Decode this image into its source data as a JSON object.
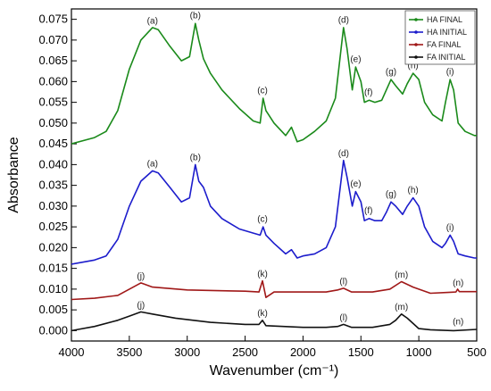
{
  "chart_data": {
    "type": "line",
    "xlabel": "Wavenumber (cm⁻¹)",
    "ylabel": "Absorbance",
    "xlim": [
      4000,
      500
    ],
    "ylim": [
      -0.0025,
      0.0775
    ],
    "x_ticks": [
      "4000",
      "3500",
      "3000",
      "2500",
      "2000",
      "1500",
      "1000",
      "500"
    ],
    "y_ticks": [
      "0.000",
      "0.005",
      "0.010",
      "0.015",
      "0.020",
      "0.025",
      "0.030",
      "0.035",
      "0.040",
      "0.045",
      "0.050",
      "0.055",
      "0.060",
      "0.065",
      "0.070",
      "0.075"
    ],
    "legend": {
      "placement": "top-right",
      "entries": [
        "HA FINAL",
        "HA INITIAL",
        "FA FINAL",
        "FA INITIAL"
      ]
    },
    "series": [
      {
        "name": "HA FINAL",
        "color": "#1a8a1a",
        "points": [
          [
            4000,
            0.045
          ],
          [
            3800,
            0.0465
          ],
          [
            3700,
            0.048
          ],
          [
            3600,
            0.053
          ],
          [
            3500,
            0.063
          ],
          [
            3400,
            0.07
          ],
          [
            3300,
            0.073
          ],
          [
            3250,
            0.0725
          ],
          [
            3150,
            0.0685
          ],
          [
            3050,
            0.065
          ],
          [
            2980,
            0.066
          ],
          [
            2930,
            0.074
          ],
          [
            2900,
            0.07
          ],
          [
            2860,
            0.0655
          ],
          [
            2800,
            0.062
          ],
          [
            2700,
            0.058
          ],
          [
            2550,
            0.0535
          ],
          [
            2430,
            0.0505
          ],
          [
            2370,
            0.05
          ],
          [
            2345,
            0.056
          ],
          [
            2320,
            0.053
          ],
          [
            2250,
            0.05
          ],
          [
            2150,
            0.047
          ],
          [
            2100,
            0.049
          ],
          [
            2050,
            0.0455
          ],
          [
            2000,
            0.046
          ],
          [
            1900,
            0.048
          ],
          [
            1800,
            0.0505
          ],
          [
            1720,
            0.056
          ],
          [
            1650,
            0.073
          ],
          [
            1620,
            0.068
          ],
          [
            1575,
            0.058
          ],
          [
            1545,
            0.0635
          ],
          [
            1500,
            0.06
          ],
          [
            1470,
            0.055
          ],
          [
            1430,
            0.0555
          ],
          [
            1380,
            0.055
          ],
          [
            1320,
            0.0555
          ],
          [
            1280,
            0.058
          ],
          [
            1240,
            0.0605
          ],
          [
            1200,
            0.059
          ],
          [
            1140,
            0.057
          ],
          [
            1100,
            0.0595
          ],
          [
            1050,
            0.062
          ],
          [
            1000,
            0.0605
          ],
          [
            950,
            0.055
          ],
          [
            880,
            0.052
          ],
          [
            800,
            0.0505
          ],
          [
            770,
            0.055
          ],
          [
            730,
            0.0605
          ],
          [
            700,
            0.058
          ],
          [
            660,
            0.05
          ],
          [
            600,
            0.048
          ],
          [
            520,
            0.047
          ],
          [
            500,
            0.047
          ]
        ]
      },
      {
        "name": "HA INITIAL",
        "color": "#1c1ccc",
        "points": [
          [
            4000,
            0.016
          ],
          [
            3800,
            0.017
          ],
          [
            3700,
            0.018
          ],
          [
            3600,
            0.022
          ],
          [
            3500,
            0.03
          ],
          [
            3400,
            0.036
          ],
          [
            3300,
            0.0385
          ],
          [
            3250,
            0.038
          ],
          [
            3150,
            0.0345
          ],
          [
            3050,
            0.031
          ],
          [
            2980,
            0.032
          ],
          [
            2930,
            0.04
          ],
          [
            2900,
            0.036
          ],
          [
            2860,
            0.0345
          ],
          [
            2800,
            0.03
          ],
          [
            2700,
            0.027
          ],
          [
            2550,
            0.0245
          ],
          [
            2430,
            0.0235
          ],
          [
            2370,
            0.023
          ],
          [
            2345,
            0.025
          ],
          [
            2320,
            0.023
          ],
          [
            2250,
            0.021
          ],
          [
            2150,
            0.0185
          ],
          [
            2100,
            0.0195
          ],
          [
            2050,
            0.0175
          ],
          [
            2000,
            0.018
          ],
          [
            1900,
            0.0185
          ],
          [
            1800,
            0.02
          ],
          [
            1720,
            0.025
          ],
          [
            1650,
            0.041
          ],
          [
            1620,
            0.037
          ],
          [
            1575,
            0.03
          ],
          [
            1545,
            0.0335
          ],
          [
            1500,
            0.031
          ],
          [
            1470,
            0.0265
          ],
          [
            1430,
            0.027
          ],
          [
            1380,
            0.0265
          ],
          [
            1320,
            0.0265
          ],
          [
            1280,
            0.0285
          ],
          [
            1240,
            0.031
          ],
          [
            1200,
            0.03
          ],
          [
            1140,
            0.028
          ],
          [
            1100,
            0.03
          ],
          [
            1050,
            0.032
          ],
          [
            1000,
            0.03
          ],
          [
            950,
            0.025
          ],
          [
            880,
            0.0215
          ],
          [
            800,
            0.02
          ],
          [
            770,
            0.021
          ],
          [
            730,
            0.023
          ],
          [
            700,
            0.0215
          ],
          [
            660,
            0.0185
          ],
          [
            600,
            0.018
          ],
          [
            520,
            0.0175
          ],
          [
            500,
            0.0175
          ]
        ]
      },
      {
        "name": "FA FINAL",
        "color": "#a01818",
        "points": [
          [
            4000,
            0.0075
          ],
          [
            3800,
            0.0078
          ],
          [
            3600,
            0.0085
          ],
          [
            3500,
            0.01
          ],
          [
            3400,
            0.0115
          ],
          [
            3300,
            0.0105
          ],
          [
            3000,
            0.0098
          ],
          [
            2700,
            0.0096
          ],
          [
            2500,
            0.0095
          ],
          [
            2380,
            0.0093
          ],
          [
            2350,
            0.012
          ],
          [
            2320,
            0.008
          ],
          [
            2250,
            0.0093
          ],
          [
            2000,
            0.0093
          ],
          [
            1800,
            0.0093
          ],
          [
            1700,
            0.0098
          ],
          [
            1650,
            0.0102
          ],
          [
            1580,
            0.0093
          ],
          [
            1400,
            0.0093
          ],
          [
            1250,
            0.01
          ],
          [
            1150,
            0.0118
          ],
          [
            1050,
            0.0105
          ],
          [
            900,
            0.009
          ],
          [
            750,
            0.0092
          ],
          [
            680,
            0.0093
          ],
          [
            665,
            0.01
          ],
          [
            650,
            0.0094
          ],
          [
            500,
            0.0094
          ]
        ]
      },
      {
        "name": "FA INITIAL",
        "color": "#111111",
        "points": [
          [
            4000,
            0.0
          ],
          [
            3800,
            0.001
          ],
          [
            3600,
            0.0025
          ],
          [
            3500,
            0.0035
          ],
          [
            3400,
            0.0045
          ],
          [
            3300,
            0.004
          ],
          [
            3100,
            0.003
          ],
          [
            2800,
            0.002
          ],
          [
            2500,
            0.0015
          ],
          [
            2380,
            0.0015
          ],
          [
            2350,
            0.0025
          ],
          [
            2320,
            0.0012
          ],
          [
            2000,
            0.0008
          ],
          [
            1800,
            0.0008
          ],
          [
            1700,
            0.001
          ],
          [
            1650,
            0.0015
          ],
          [
            1580,
            0.0008
          ],
          [
            1400,
            0.0008
          ],
          [
            1250,
            0.0015
          ],
          [
            1200,
            0.0025
          ],
          [
            1150,
            0.004
          ],
          [
            1100,
            0.003
          ],
          [
            1000,
            0.0005
          ],
          [
            900,
            0.0002
          ],
          [
            700,
            0.0
          ],
          [
            500,
            0.0003
          ]
        ]
      }
    ],
    "annotations": [
      {
        "text": "(a)",
        "x": 3300,
        "y": 0.074
      },
      {
        "text": "(b)",
        "x": 2930,
        "y": 0.0752
      },
      {
        "text": "(c)",
        "x": 2350,
        "y": 0.0572
      },
      {
        "text": "(d)",
        "x": 1650,
        "y": 0.0742
      },
      {
        "text": "(e)",
        "x": 1545,
        "y": 0.0647
      },
      {
        "text": "(f)",
        "x": 1435,
        "y": 0.0567
      },
      {
        "text": "(g)",
        "x": 1240,
        "y": 0.0617
      },
      {
        "text": "(h)",
        "x": 1050,
        "y": 0.0632
      },
      {
        "text": "(i)",
        "x": 730,
        "y": 0.0617
      },
      {
        "text": "(a)",
        "x": 3300,
        "y": 0.0395
      },
      {
        "text": "(b)",
        "x": 2930,
        "y": 0.041
      },
      {
        "text": "(c)",
        "x": 2350,
        "y": 0.0262
      },
      {
        "text": "(d)",
        "x": 1650,
        "y": 0.042
      },
      {
        "text": "(e)",
        "x": 1545,
        "y": 0.0347
      },
      {
        "text": "(f)",
        "x": 1435,
        "y": 0.0282
      },
      {
        "text": "(g)",
        "x": 1240,
        "y": 0.0322
      },
      {
        "text": "(h)",
        "x": 1050,
        "y": 0.0332
      },
      {
        "text": "(i)",
        "x": 730,
        "y": 0.0242
      },
      {
        "text": "(j)",
        "x": 3400,
        "y": 0.0125
      },
      {
        "text": "(k)",
        "x": 2350,
        "y": 0.013
      },
      {
        "text": "(l)",
        "x": 1650,
        "y": 0.0112
      },
      {
        "text": "(m)",
        "x": 1150,
        "y": 0.0128
      },
      {
        "text": "(n)",
        "x": 660,
        "y": 0.0108
      },
      {
        "text": "(j)",
        "x": 3400,
        "y": 0.0055
      },
      {
        "text": "(k)",
        "x": 2350,
        "y": 0.0035
      },
      {
        "text": "(l)",
        "x": 1650,
        "y": 0.0025
      },
      {
        "text": "(m)",
        "x": 1150,
        "y": 0.005
      },
      {
        "text": "(n)",
        "x": 660,
        "y": 0.0015
      }
    ]
  }
}
